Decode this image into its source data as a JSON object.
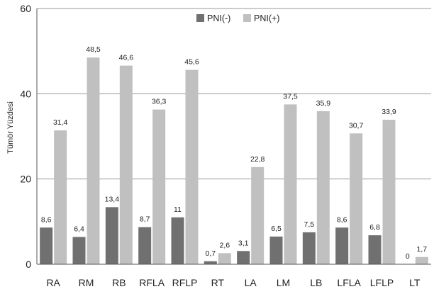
{
  "chart_data": {
    "type": "bar",
    "title": "",
    "xlabel": "",
    "ylabel": "Tümör Yüzdesi",
    "ylim": [
      0,
      60
    ],
    "yticks": [
      0,
      20,
      40,
      60
    ],
    "grid": "horizontal",
    "legend_position": "top-center",
    "categories": [
      "RA",
      "RM",
      "RB",
      "RFLA",
      "RFLP",
      "RT",
      "LA",
      "LM",
      "LB",
      "LFLA",
      "LFLP",
      "LT"
    ],
    "series": [
      {
        "name": "PNI(-)",
        "color": "#707070",
        "values": [
          8.6,
          6.4,
          13.4,
          8.7,
          11,
          0.7,
          3.1,
          6.5,
          7.5,
          8.6,
          6.8,
          0
        ],
        "labels": [
          "8,6",
          "6,4",
          "13,4",
          "8,7",
          "11",
          "0,7",
          "3,1",
          "6,5",
          "7,5",
          "8,6",
          "6,8",
          "0"
        ]
      },
      {
        "name": "PNI(+)",
        "color": "#c0c0c0",
        "values": [
          31.4,
          48.5,
          46.6,
          36.3,
          45.6,
          2.6,
          22.8,
          37.5,
          35.9,
          30.7,
          33.9,
          1.7
        ],
        "labels": [
          "31,4",
          "48,5",
          "46,6",
          "36,3",
          "45,6",
          "2,6",
          "22,8",
          "37,5",
          "35,9",
          "30,7",
          "33,9",
          "1,7"
        ]
      }
    ]
  }
}
